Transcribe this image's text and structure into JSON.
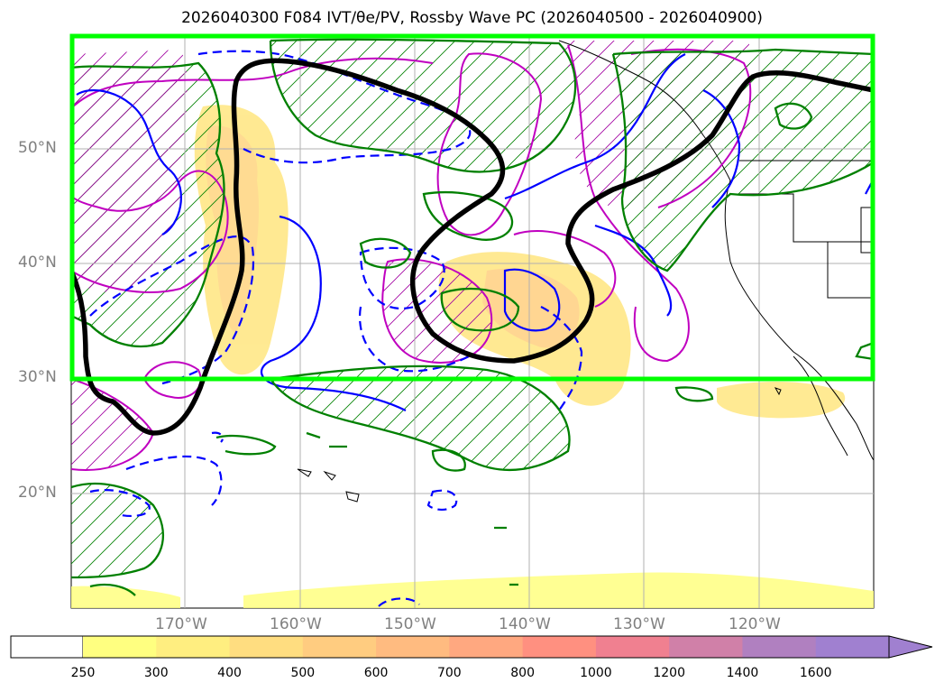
{
  "title": "2026040300 F084 IVT/θe/PV, Rossby Wave PC (2026040500 - 2026040900)",
  "lat_labels": [
    "50°N",
    "40°N",
    "30°N",
    "20°N"
  ],
  "lon_labels": [
    "170°W",
    "160°W",
    "150°W",
    "140°W",
    "130°W",
    "120°W"
  ],
  "colorbar": {
    "ticks": [
      "250",
      "300",
      "400",
      "500",
      "600",
      "700",
      "800",
      "1000",
      "1200",
      "1400",
      "1600"
    ],
    "colors": [
      "#ffff80",
      "#ffee80",
      "#ffdd80",
      "#ffcc80",
      "#ffbb80",
      "#ffa880",
      "#ff9080",
      "#f08090",
      "#d080a8",
      "#b080c0",
      "#a080d0"
    ],
    "extend": "max"
  },
  "legend_colors": {
    "domain_box": "#00ff00",
    "pv_contour": "#000000",
    "pc_positive": "#008000",
    "pc_negative": "#0000ff",
    "theta_e": "#c000c0"
  }
}
